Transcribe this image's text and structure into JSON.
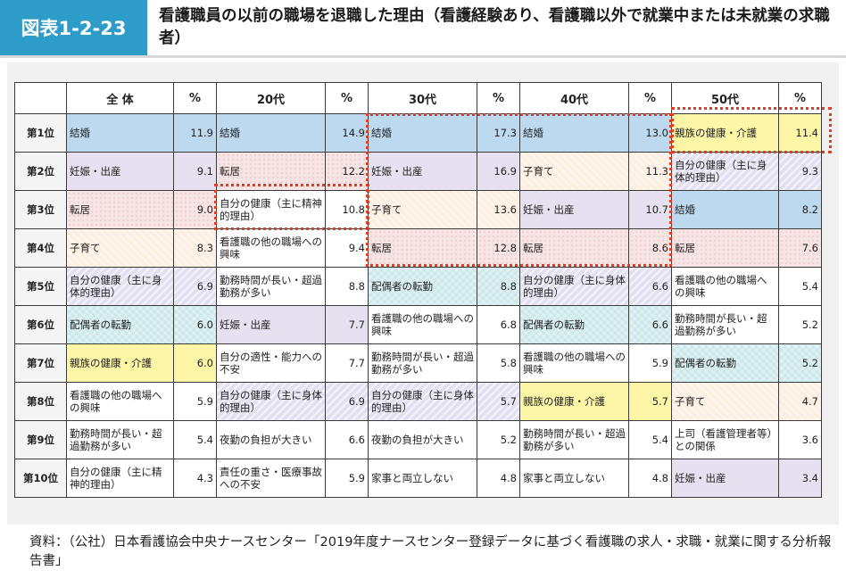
{
  "figure": {
    "label": "図表1-2-23",
    "title": "看護職員の以前の職場を退職した理由（看護経験あり、看護職以外で就業中または未就業の求職者）"
  },
  "colors": {
    "header_badge": "#2e9cc8",
    "highlight_border": "#e63a1e",
    "結婚": "#bdd9ef",
    "親族の健康・介護": "#fdf6a6"
  },
  "table": {
    "headers": [
      "全 体",
      "%",
      "20代",
      "%",
      "30代",
      "%",
      "40代",
      "%",
      "50代",
      "%"
    ],
    "rows": [
      {
        "rank": "第1位",
        "cells": [
          {
            "reason": "結婚",
            "pct": "11.9",
            "style": "c-marriage"
          },
          {
            "reason": "結婚",
            "pct": "14.9",
            "style": "c-marriage"
          },
          {
            "reason": "結婚",
            "pct": "17.3",
            "style": "c-marriage"
          },
          {
            "reason": "結婚",
            "pct": "13.0",
            "style": "c-marriage"
          },
          {
            "reason": "親族の健康・介護",
            "pct": "11.4",
            "style": "c-family"
          }
        ]
      },
      {
        "rank": "第2位",
        "cells": [
          {
            "reason": "妊娠・出産",
            "pct": "9.1",
            "style": "c-pregnancy"
          },
          {
            "reason": "転居",
            "pct": "12.2",
            "style": "c-relocation"
          },
          {
            "reason": "妊娠・出産",
            "pct": "16.9",
            "style": "c-pregnancy"
          },
          {
            "reason": "子育て",
            "pct": "11.3",
            "style": "c-childcare"
          },
          {
            "reason": "自分の健康（主に身体的理由）",
            "pct": "9.3",
            "style": "c-ownhealth"
          }
        ]
      },
      {
        "rank": "第3位",
        "cells": [
          {
            "reason": "転居",
            "pct": "9.0",
            "style": "c-relocation"
          },
          {
            "reason": "自分の健康（主に精神的理由）",
            "pct": "10.8",
            "style": "c-white"
          },
          {
            "reason": "子育て",
            "pct": "13.6",
            "style": "c-childcare"
          },
          {
            "reason": "妊娠・出産",
            "pct": "10.7",
            "style": "c-pregnancy"
          },
          {
            "reason": "結婚",
            "pct": "8.2",
            "style": "c-marriage"
          }
        ]
      },
      {
        "rank": "第4位",
        "cells": [
          {
            "reason": "子育て",
            "pct": "8.3",
            "style": "c-childcare"
          },
          {
            "reason": "看護職の他の職場への興味",
            "pct": "9.4",
            "style": "c-white"
          },
          {
            "reason": "転居",
            "pct": "12.8",
            "style": "c-relocation"
          },
          {
            "reason": "転居",
            "pct": "8.6",
            "style": "c-relocation"
          },
          {
            "reason": "転居",
            "pct": "7.6",
            "style": "c-relocation"
          }
        ]
      },
      {
        "rank": "第5位",
        "cells": [
          {
            "reason": "自分の健康（主に身体的理由）",
            "pct": "6.9",
            "style": "c-ownhealth"
          },
          {
            "reason": "勤務時間が長い・超過勤務が多い",
            "pct": "8.8",
            "style": "c-white"
          },
          {
            "reason": "配偶者の転勤",
            "pct": "8.8",
            "style": "c-spouse"
          },
          {
            "reason": "自分の健康（主に身体的理由）",
            "pct": "6.6",
            "style": "c-ownhealth"
          },
          {
            "reason": "看護職の他の職場への興味",
            "pct": "5.4",
            "style": "c-white"
          }
        ]
      },
      {
        "rank": "第6位",
        "cells": [
          {
            "reason": "配偶者の転勤",
            "pct": "6.0",
            "style": "c-spouse"
          },
          {
            "reason": "妊娠・出産",
            "pct": "7.7",
            "style": "c-pregnancy"
          },
          {
            "reason": "看護職の他の職場への興味",
            "pct": "6.8",
            "style": "c-white"
          },
          {
            "reason": "配偶者の転勤",
            "pct": "6.6",
            "style": "c-spouse"
          },
          {
            "reason": "勤務時間が長い・超過勤務が多い",
            "pct": "5.2",
            "style": "c-white"
          }
        ]
      },
      {
        "rank": "第7位",
        "cells": [
          {
            "reason": "親族の健康・介護",
            "pct": "6.0",
            "style": "c-family"
          },
          {
            "reason": "自分の適性・能力への不安",
            "pct": "7.7",
            "style": "c-white"
          },
          {
            "reason": "勤務時間が長い・超過勤務が多い",
            "pct": "5.8",
            "style": "c-white"
          },
          {
            "reason": "看護職の他の職場への興味",
            "pct": "5.9",
            "style": "c-white"
          },
          {
            "reason": "配偶者の転勤",
            "pct": "5.2",
            "style": "c-spouse"
          }
        ]
      },
      {
        "rank": "第8位",
        "cells": [
          {
            "reason": "看護職の他の職場への興味",
            "pct": "5.9",
            "style": "c-white"
          },
          {
            "reason": "自分の健康（主に身体的理由）",
            "pct": "6.9",
            "style": "c-ownhealth"
          },
          {
            "reason": "自分の健康（主に身体的理由）",
            "pct": "5.7",
            "style": "c-ownhealth"
          },
          {
            "reason": "親族の健康・介護",
            "pct": "5.7",
            "style": "c-family"
          },
          {
            "reason": "子育て",
            "pct": "4.7",
            "style": "c-childcare"
          }
        ]
      },
      {
        "rank": "第9位",
        "cells": [
          {
            "reason": "勤務時間が長い・超過勤務が多い",
            "pct": "5.4",
            "style": "c-white"
          },
          {
            "reason": "夜勤の負担が大きい",
            "pct": "6.6",
            "style": "c-white"
          },
          {
            "reason": "夜勤の負担が大きい",
            "pct": "5.2",
            "style": "c-white"
          },
          {
            "reason": "勤務時間が長い・超過勤務が多い",
            "pct": "5.4",
            "style": "c-white"
          },
          {
            "reason": "上司（看護管理者等）との関係",
            "pct": "3.6",
            "style": "c-white"
          }
        ]
      },
      {
        "rank": "第10位",
        "cells": [
          {
            "reason": "自分の健康（主に精神的理由）",
            "pct": "4.3",
            "style": "c-white"
          },
          {
            "reason": "責任の重さ・医療事故への不安",
            "pct": "5.9",
            "style": "c-white"
          },
          {
            "reason": "家事と両立しない",
            "pct": "4.8",
            "style": "c-white"
          },
          {
            "reason": "家事と両立しない",
            "pct": "4.8",
            "style": "c-white"
          },
          {
            "reason": "妊娠・出産",
            "pct": "3.4",
            "style": "c-pregnancy"
          }
        ]
      }
    ]
  },
  "source": "資料：（公社）日本看護協会中央ナースセンター「2019年度ナースセンター登録データに基づく看護職の求人・求職・就業に関する分析報告書」"
}
